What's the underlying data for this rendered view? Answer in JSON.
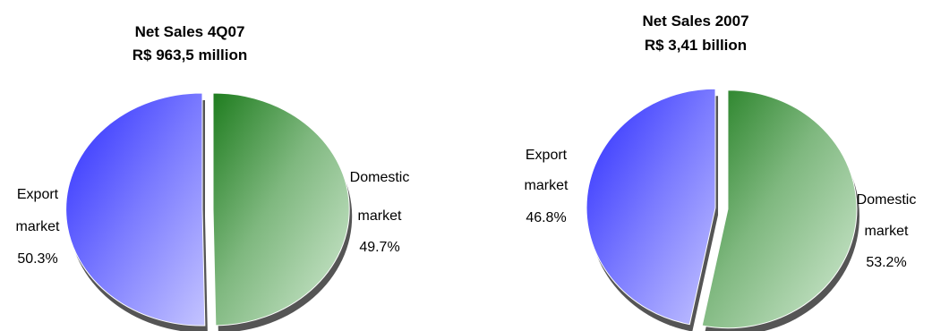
{
  "chart_data": [
    {
      "type": "pie",
      "title": "Net Sales 4Q07",
      "subtitle": "R$ 963,5 million",
      "slices": [
        {
          "label_lines": [
            "Domestic",
            "market"
          ],
          "value_text": "49.7%",
          "value": 49.7,
          "color": "#2e8b2e"
        },
        {
          "label_lines": [
            "Export",
            "market"
          ],
          "value_text": "50.3%",
          "value": 50.3,
          "color": "#4a4aff"
        }
      ]
    },
    {
      "type": "pie",
      "title": "Net Sales 2007",
      "subtitle": "R$ 3,41 billion",
      "slices": [
        {
          "label_lines": [
            "Domestic",
            "market"
          ],
          "value_text": "53.2%",
          "value": 53.2,
          "color": "#2e8b2e"
        },
        {
          "label_lines": [
            "Export",
            "market"
          ],
          "value_text": "46.8%",
          "value": 46.8,
          "color": "#4a4aff"
        }
      ]
    }
  ]
}
